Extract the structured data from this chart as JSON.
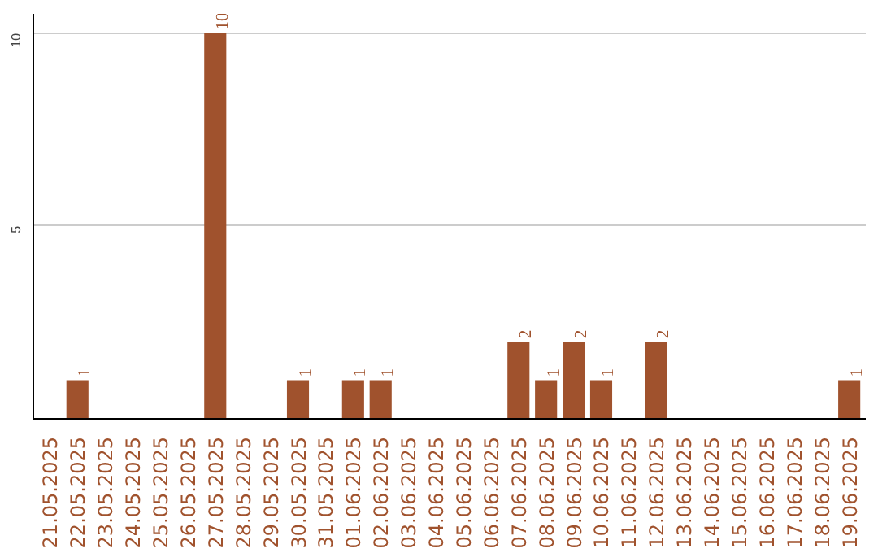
{
  "chart_data": {
    "type": "bar",
    "categories": [
      "21.05.2025",
      "22.05.2025",
      "23.05.2025",
      "24.05.2025",
      "25.05.2025",
      "26.05.2025",
      "27.05.2025",
      "28.05.2025",
      "29.05.2025",
      "30.05.2025",
      "31.05.2025",
      "01.06.2025",
      "02.06.2025",
      "03.06.2025",
      "04.06.2025",
      "05.06.2025",
      "06.06.2025",
      "07.06.2025",
      "08.06.2025",
      "09.06.2025",
      "10.06.2025",
      "11.06.2025",
      "12.06.2025",
      "13.06.2025",
      "14.06.2025",
      "15.06.2025",
      "16.06.2025",
      "17.06.2025",
      "18.06.2025",
      "19.06.2025"
    ],
    "values": [
      0,
      1,
      0,
      0,
      0,
      0,
      10,
      0,
      0,
      1,
      0,
      1,
      1,
      0,
      0,
      0,
      0,
      2,
      1,
      2,
      1,
      0,
      2,
      0,
      0,
      0,
      0,
      0,
      0,
      1
    ],
    "value_labels": [
      null,
      "1",
      null,
      null,
      null,
      null,
      "10",
      null,
      null,
      "1",
      null,
      "1",
      "1",
      null,
      null,
      null,
      null,
      "2",
      "1",
      "2",
      "1",
      null,
      "2",
      null,
      null,
      null,
      null,
      null,
      null,
      "1"
    ],
    "color": "#a0522d",
    "ylim": [
      0,
      10.5
    ],
    "yticks": [
      5,
      10
    ],
    "grid": "y"
  }
}
